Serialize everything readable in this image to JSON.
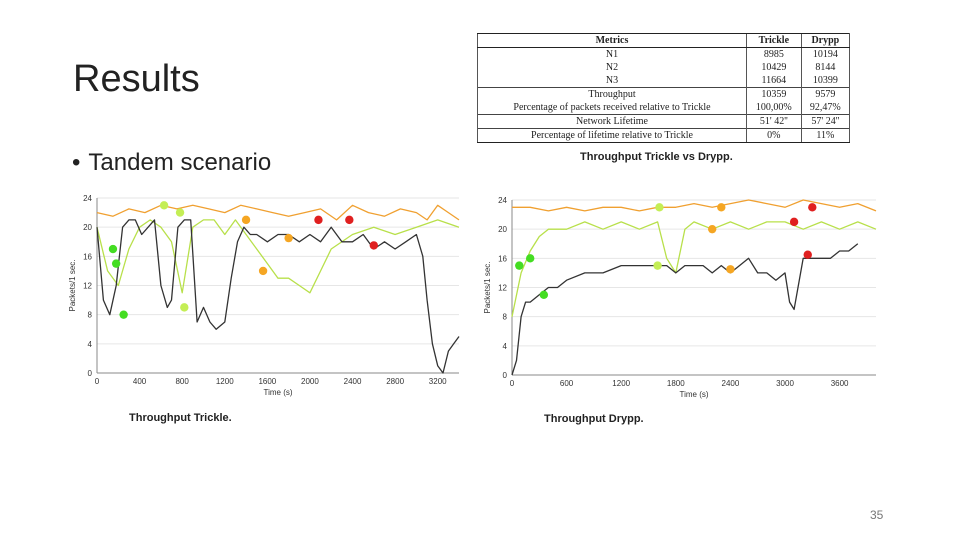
{
  "slide": {
    "title": "Results",
    "bullet": "Tandem scenario",
    "bullet_symbol": "•",
    "page_number": "35"
  },
  "metrics_table": {
    "headers": [
      "Metrics",
      "Trickle",
      "Drypp"
    ],
    "rows": [
      [
        "N1",
        "8985",
        "10194"
      ],
      [
        "N2",
        "10429",
        "8144"
      ],
      [
        "N3",
        "11664",
        "10399"
      ],
      [
        "Throughput",
        "10359",
        "9579"
      ],
      [
        "Percentage of packets received relative to Trickle",
        "100,00%",
        "92,47%"
      ],
      [
        "Network Lifetime",
        "51' 42''",
        "57' 24''"
      ],
      [
        "Percentage of lifetime relative to Trickle",
        "0%",
        "11%"
      ]
    ]
  },
  "captions": {
    "compare": "Throughput Trickle vs Drypp.",
    "trickle": "Throughput Trickle.",
    "drypp": "Throughput Drypp."
  },
  "colors": {
    "orange_line": "#f0a030",
    "green_line": "#b8e04a",
    "black_line": "#333333",
    "dot_green": "#44dd22",
    "dot_lime": "#c4ee55",
    "dot_orange": "#f5a623",
    "dot_red": "#e02020"
  },
  "chart_data": [
    {
      "type": "line",
      "title": "Throughput Trickle.",
      "xlabel": "Time (s)",
      "ylabel": "Packets/1 sec.",
      "xlim": [
        0,
        3400
      ],
      "ylim": [
        0,
        24
      ],
      "xticks": [
        "0",
        "400",
        "800",
        "1200",
        "1600",
        "2000",
        "2400",
        "2800",
        "3200"
      ],
      "yticks": [
        "0",
        "4",
        "8",
        "12",
        "16",
        "20",
        "24"
      ],
      "series": [
        {
          "name": "orange",
          "color": "#f0a030",
          "x": [
            0,
            150,
            300,
            450,
            600,
            750,
            900,
            1050,
            1200,
            1350,
            1500,
            1650,
            1800,
            1950,
            2100,
            2250,
            2400,
            2550,
            2700,
            2850,
            3000,
            3100,
            3200,
            3300,
            3400
          ],
          "y": [
            22,
            21.5,
            22.5,
            22,
            23,
            22.5,
            23,
            22.5,
            22,
            23,
            22.5,
            22,
            21.5,
            22,
            22.5,
            21,
            23,
            22,
            21.5,
            22.5,
            22,
            21,
            23,
            22,
            21
          ]
        },
        {
          "name": "green",
          "color": "#b8e04a",
          "x": [
            0,
            100,
            200,
            300,
            400,
            500,
            600,
            700,
            800,
            900,
            1000,
            1100,
            1200,
            1300,
            1400,
            1500,
            1600,
            1700,
            1800,
            1900,
            2000,
            2100,
            2200,
            2400,
            2600,
            2800,
            3000,
            3200,
            3400
          ],
          "y": [
            20,
            14,
            12,
            17,
            20,
            21,
            20,
            18,
            11,
            20,
            21,
            21,
            19,
            21,
            19,
            17,
            15,
            13,
            13,
            12,
            11,
            14,
            17,
            19,
            20,
            19,
            20,
            21,
            20
          ]
        },
        {
          "name": "black",
          "color": "#333333",
          "x": [
            0,
            60,
            120,
            180,
            240,
            300,
            360,
            420,
            480,
            540,
            600,
            660,
            700,
            760,
            820,
            880,
            940,
            1000,
            1060,
            1120,
            1200,
            1260,
            1320,
            1380,
            1440,
            1500,
            1600,
            1700,
            1800,
            1900,
            2000,
            2100,
            2200,
            2300,
            2400,
            2500,
            2600,
            2700,
            2800,
            2900,
            3000,
            3060,
            3100,
            3150,
            3200,
            3250,
            3300,
            3350,
            3400
          ],
          "y": [
            20,
            10,
            8,
            12,
            20,
            21,
            21,
            19,
            20,
            21,
            12,
            9,
            10,
            20,
            21,
            21,
            7,
            9,
            7,
            6,
            7,
            13,
            18,
            20,
            19,
            19,
            18,
            19,
            19,
            18,
            19,
            18,
            20,
            18,
            18,
            19,
            17,
            18,
            17,
            18,
            19,
            16,
            10,
            4,
            1,
            0,
            3,
            4,
            5
          ]
        }
      ],
      "markers": [
        {
          "x": 150,
          "y": 17,
          "color": "#44dd22"
        },
        {
          "x": 180,
          "y": 15,
          "color": "#44dd22"
        },
        {
          "x": 250,
          "y": 8,
          "color": "#44dd22"
        },
        {
          "x": 630,
          "y": 23,
          "color": "#c4ee55"
        },
        {
          "x": 780,
          "y": 22,
          "color": "#c4ee55"
        },
        {
          "x": 820,
          "y": 9,
          "color": "#c4ee55"
        },
        {
          "x": 1400,
          "y": 21,
          "color": "#f5a623"
        },
        {
          "x": 1560,
          "y": 14,
          "color": "#f5a623"
        },
        {
          "x": 1800,
          "y": 18.5,
          "color": "#f5a623"
        },
        {
          "x": 2080,
          "y": 21,
          "color": "#e02020"
        },
        {
          "x": 2370,
          "y": 21,
          "color": "#e02020"
        },
        {
          "x": 2600,
          "y": 17.5,
          "color": "#e02020"
        }
      ]
    },
    {
      "type": "line",
      "title": "Throughput Drypp.",
      "xlabel": "Time (s)",
      "ylabel": "Packets/1 sec.",
      "xlim": [
        0,
        4000
      ],
      "ylim": [
        0,
        24
      ],
      "xticks": [
        "0",
        "600",
        "1200",
        "1800",
        "2400",
        "3000",
        "3600"
      ],
      "yticks": [
        "0",
        "4",
        "8",
        "12",
        "16",
        "20",
        "24"
      ],
      "series": [
        {
          "name": "orange",
          "color": "#f0a030",
          "x": [
            0,
            200,
            400,
            600,
            800,
            1000,
            1200,
            1400,
            1600,
            1800,
            2000,
            2200,
            2400,
            2600,
            2800,
            3000,
            3200,
            3400,
            3600,
            3800,
            4000
          ],
          "y": [
            23,
            23,
            22.5,
            23,
            22.5,
            23,
            23,
            22.5,
            23,
            23,
            23.5,
            23,
            23.5,
            24,
            23.5,
            23,
            24,
            23.5,
            23,
            23.5,
            22.5
          ]
        },
        {
          "name": "green",
          "color": "#b8e04a",
          "x": [
            0,
            100,
            200,
            300,
            400,
            600,
            800,
            1000,
            1200,
            1400,
            1600,
            1700,
            1800,
            1900,
            2000,
            2200,
            2400,
            2600,
            2800,
            3000,
            3200,
            3400,
            3600,
            3800,
            4000
          ],
          "y": [
            8,
            14,
            17,
            19,
            20,
            20,
            21,
            20,
            21,
            20,
            21,
            16,
            14,
            20,
            21,
            20,
            21,
            20,
            21,
            21,
            20,
            21,
            20,
            21,
            20
          ]
        },
        {
          "name": "black",
          "color": "#333333",
          "x": [
            0,
            50,
            100,
            150,
            200,
            300,
            400,
            500,
            600,
            800,
            1000,
            1200,
            1400,
            1500,
            1600,
            1700,
            1800,
            1900,
            2000,
            2100,
            2200,
            2300,
            2400,
            2500,
            2600,
            2700,
            2800,
            2900,
            3000,
            3050,
            3100,
            3200,
            3300,
            3400,
            3500,
            3600,
            3700,
            3800
          ],
          "y": [
            0,
            2,
            8,
            10,
            10,
            11,
            12,
            12,
            13,
            14,
            14,
            15,
            15,
            15,
            15,
            15,
            14,
            15,
            15,
            15,
            14,
            15,
            14,
            15,
            16,
            14,
            14,
            13,
            14,
            10,
            9,
            16,
            16,
            16,
            16,
            17,
            17,
            18
          ]
        }
      ],
      "markers": [
        {
          "x": 80,
          "y": 15,
          "color": "#44dd22"
        },
        {
          "x": 200,
          "y": 16,
          "color": "#44dd22"
        },
        {
          "x": 350,
          "y": 11,
          "color": "#44dd22"
        },
        {
          "x": 1620,
          "y": 23,
          "color": "#c4ee55"
        },
        {
          "x": 1600,
          "y": 15,
          "color": "#c4ee55"
        },
        {
          "x": 2200,
          "y": 20,
          "color": "#f5a623"
        },
        {
          "x": 2300,
          "y": 23,
          "color": "#f5a623"
        },
        {
          "x": 2400,
          "y": 14.5,
          "color": "#f5a623"
        },
        {
          "x": 3100,
          "y": 21,
          "color": "#e02020"
        },
        {
          "x": 3300,
          "y": 23,
          "color": "#e02020"
        },
        {
          "x": 3250,
          "y": 16.5,
          "color": "#e02020"
        }
      ]
    }
  ]
}
